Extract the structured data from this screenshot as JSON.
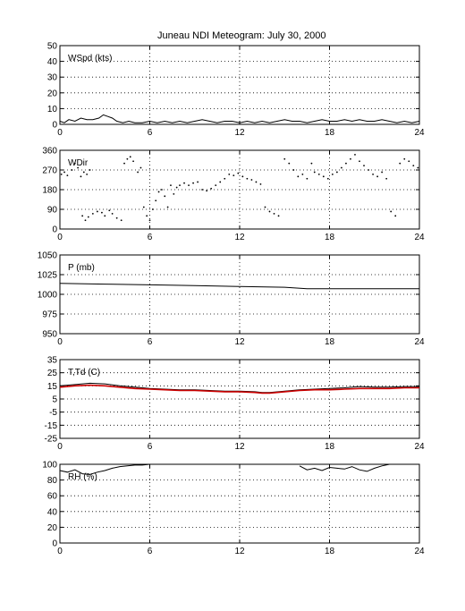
{
  "figure": {
    "title": "Juneau NDI Meteogram:",
    "date": "July 30, 2000"
  },
  "chart_data": [
    {
      "type": "line",
      "panel_label": "WSpd (kts)",
      "xlim": [
        0,
        24
      ],
      "xticks": [
        0,
        6,
        12,
        18,
        24
      ],
      "ylim": [
        0,
        50
      ],
      "yticks": [
        0,
        10,
        20,
        30,
        40,
        50
      ],
      "grid": true,
      "series": [
        {
          "color": "#000000",
          "points": [
            [
              0,
              2
            ],
            [
              0.3,
              1
            ],
            [
              0.6,
              3
            ],
            [
              1,
              2
            ],
            [
              1.4,
              4
            ],
            [
              1.8,
              3
            ],
            [
              2.2,
              3
            ],
            [
              2.6,
              4
            ],
            [
              2.9,
              6
            ],
            [
              3.2,
              5
            ],
            [
              3.5,
              4
            ],
            [
              3.8,
              2
            ],
            [
              4.2,
              1
            ],
            [
              4.6,
              2
            ],
            [
              5,
              1
            ],
            [
              5.5,
              1
            ],
            [
              6,
              2
            ],
            [
              6.5,
              1
            ],
            [
              7,
              2
            ],
            [
              7.5,
              1
            ],
            [
              8,
              2
            ],
            [
              8.5,
              1
            ],
            [
              9,
              2
            ],
            [
              9.5,
              3
            ],
            [
              10,
              2
            ],
            [
              10.5,
              1
            ],
            [
              11,
              2
            ],
            [
              11.5,
              2
            ],
            [
              12,
              1
            ],
            [
              12.5,
              2
            ],
            [
              13,
              1
            ],
            [
              13.5,
              2
            ],
            [
              14,
              1
            ],
            [
              14.5,
              2
            ],
            [
              15,
              3
            ],
            [
              15.5,
              2
            ],
            [
              16,
              2
            ],
            [
              16.5,
              1
            ],
            [
              17,
              2
            ],
            [
              17.5,
              3
            ],
            [
              18,
              2
            ],
            [
              18.5,
              2
            ],
            [
              19,
              3
            ],
            [
              19.5,
              2
            ],
            [
              20,
              3
            ],
            [
              20.5,
              2
            ],
            [
              21,
              2
            ],
            [
              21.5,
              3
            ],
            [
              22,
              2
            ],
            [
              22.5,
              1
            ],
            [
              23,
              2
            ],
            [
              23.5,
              1
            ],
            [
              24,
              2
            ]
          ]
        }
      ]
    },
    {
      "type": "scatter",
      "panel_label": "WDir",
      "xlim": [
        0,
        24
      ],
      "xticks": [
        0,
        6,
        12,
        18,
        24
      ],
      "ylim": [
        0,
        360
      ],
      "yticks": [
        0,
        90,
        180,
        270,
        360
      ],
      "grid": true,
      "series": [
        {
          "color": "#000000",
          "points": [
            [
              0.1,
              250
            ],
            [
              0.3,
              260
            ],
            [
              0.5,
              245
            ],
            [
              0.8,
              270
            ],
            [
              1.0,
              300
            ],
            [
              1.2,
              280
            ],
            [
              1.4,
              240
            ],
            [
              1.6,
              260
            ],
            [
              1.8,
              250
            ],
            [
              2.0,
              270
            ],
            [
              1.5,
              60
            ],
            [
              1.7,
              40
            ],
            [
              1.9,
              55
            ],
            [
              2.2,
              70
            ],
            [
              2.5,
              80
            ],
            [
              2.8,
              75
            ],
            [
              3.0,
              60
            ],
            [
              3.3,
              85
            ],
            [
              3.5,
              70
            ],
            [
              3.8,
              50
            ],
            [
              4.1,
              40
            ],
            [
              4.3,
              300
            ],
            [
              4.5,
              320
            ],
            [
              4.7,
              330
            ],
            [
              4.9,
              310
            ],
            [
              5.2,
              260
            ],
            [
              5.4,
              280
            ],
            [
              5.6,
              100
            ],
            [
              5.8,
              60
            ],
            [
              6.0,
              40
            ],
            [
              6.2,
              90
            ],
            [
              6.4,
              130
            ],
            [
              6.6,
              170
            ],
            [
              6.8,
              180
            ],
            [
              7.0,
              150
            ],
            [
              7.2,
              100
            ],
            [
              7.4,
              200
            ],
            [
              7.6,
              160
            ],
            [
              7.8,
              190
            ],
            [
              8.0,
              200
            ],
            [
              8.3,
              210
            ],
            [
              8.6,
              200
            ],
            [
              8.9,
              210
            ],
            [
              9.2,
              215
            ],
            [
              9.5,
              180
            ],
            [
              9.8,
              175
            ],
            [
              10.1,
              185
            ],
            [
              10.4,
              200
            ],
            [
              10.7,
              215
            ],
            [
              11.0,
              230
            ],
            [
              11.3,
              250
            ],
            [
              11.6,
              245
            ],
            [
              11.9,
              255
            ],
            [
              12.2,
              240
            ],
            [
              12.5,
              230
            ],
            [
              12.8,
              225
            ],
            [
              13.1,
              215
            ],
            [
              13.4,
              205
            ],
            [
              13.7,
              100
            ],
            [
              14.0,
              80
            ],
            [
              14.3,
              70
            ],
            [
              14.6,
              60
            ],
            [
              15.0,
              320
            ],
            [
              15.3,
              300
            ],
            [
              15.6,
              270
            ],
            [
              15.9,
              240
            ],
            [
              16.2,
              250
            ],
            [
              16.5,
              230
            ],
            [
              16.8,
              300
            ],
            [
              17.0,
              260
            ],
            [
              17.3,
              250
            ],
            [
              17.6,
              240
            ],
            [
              17.9,
              230
            ],
            [
              18.2,
              250
            ],
            [
              18.5,
              260
            ],
            [
              18.8,
              280
            ],
            [
              19.1,
              300
            ],
            [
              19.4,
              320
            ],
            [
              19.7,
              340
            ],
            [
              20.0,
              310
            ],
            [
              20.3,
              290
            ],
            [
              20.6,
              270
            ],
            [
              20.9,
              250
            ],
            [
              21.2,
              240
            ],
            [
              21.5,
              260
            ],
            [
              21.8,
              230
            ],
            [
              22.1,
              80
            ],
            [
              22.4,
              60
            ],
            [
              22.7,
              300
            ],
            [
              23.0,
              320
            ],
            [
              23.3,
              310
            ],
            [
              23.6,
              290
            ],
            [
              23.9,
              280
            ]
          ]
        }
      ]
    },
    {
      "type": "line",
      "panel_label": "P (mb)",
      "xlim": [
        0,
        24
      ],
      "xticks": [
        0,
        6,
        12,
        18,
        24
      ],
      "ylim": [
        950,
        1050
      ],
      "yticks": [
        950,
        975,
        1000,
        1025,
        1050
      ],
      "grid": true,
      "series": [
        {
          "color": "#000000",
          "points": [
            [
              0,
              1014
            ],
            [
              3,
              1013
            ],
            [
              6,
              1012
            ],
            [
              9,
              1011
            ],
            [
              12,
              1010
            ],
            [
              15,
              1009
            ],
            [
              16.5,
              1007
            ],
            [
              18,
              1007
            ],
            [
              21,
              1007
            ],
            [
              24,
              1007
            ]
          ]
        }
      ]
    },
    {
      "type": "line",
      "panel_label": "T,Td (C)",
      "xlim": [
        0,
        24
      ],
      "xticks": [
        0,
        6,
        12,
        18,
        24
      ],
      "ylim": [
        -25,
        35
      ],
      "yticks": [
        -25,
        -15,
        -5,
        5,
        15,
        25,
        35
      ],
      "grid": true,
      "series": [
        {
          "color": "#000000",
          "points": [
            [
              0,
              15
            ],
            [
              1,
              16
            ],
            [
              2,
              17
            ],
            [
              3,
              16.5
            ],
            [
              4,
              15
            ],
            [
              5,
              14
            ],
            [
              6,
              13
            ],
            [
              7,
              12.5
            ],
            [
              8,
              12
            ],
            [
              9,
              12
            ],
            [
              10,
              11.5
            ],
            [
              11,
              11
            ],
            [
              12,
              11
            ],
            [
              13,
              10.5
            ],
            [
              13.5,
              10
            ],
            [
              14,
              10
            ],
            [
              15,
              11
            ],
            [
              16,
              12
            ],
            [
              17,
              12.5
            ],
            [
              18,
              13
            ],
            [
              19,
              13.5
            ],
            [
              20,
              14.5
            ],
            [
              21,
              14
            ],
            [
              22,
              14
            ],
            [
              23,
              14.5
            ],
            [
              24,
              14.5
            ]
          ]
        },
        {
          "color": "#cc0000",
          "points": [
            [
              0,
              14
            ],
            [
              1,
              15
            ],
            [
              2,
              15.5
            ],
            [
              3,
              15
            ],
            [
              4,
              14
            ],
            [
              5,
              13
            ],
            [
              6,
              12.5
            ],
            [
              7,
              12
            ],
            [
              8,
              11.5
            ],
            [
              9,
              11.5
            ],
            [
              10,
              11
            ],
            [
              11,
              10.5
            ],
            [
              12,
              10.5
            ],
            [
              13,
              10
            ],
            [
              13.5,
              9.5
            ],
            [
              14,
              9.5
            ],
            [
              15,
              10.5
            ],
            [
              16,
              11.5
            ],
            [
              17,
              12
            ],
            [
              18,
              12
            ],
            [
              19,
              12.5
            ],
            [
              20,
              13
            ],
            [
              21,
              13
            ],
            [
              22,
              13
            ],
            [
              23,
              13.5
            ],
            [
              24,
              13.5
            ]
          ]
        }
      ]
    },
    {
      "type": "line",
      "panel_label": "RH (%)",
      "xlim": [
        0,
        24
      ],
      "xticks": [
        0,
        6,
        12,
        18,
        24
      ],
      "ylim": [
        0,
        100
      ],
      "yticks": [
        0,
        20,
        40,
        60,
        80,
        100
      ],
      "grid": true,
      "series": [
        {
          "color": "#000000",
          "points": [
            [
              0,
              92
            ],
            [
              0.5,
              90
            ],
            [
              1,
              93
            ],
            [
              1.5,
              88
            ],
            [
              2,
              87
            ],
            [
              2.5,
              90
            ],
            [
              3,
              92
            ],
            [
              3.5,
              95
            ],
            [
              4,
              97
            ],
            [
              4.5,
              98
            ],
            [
              5,
              99
            ],
            [
              5.5,
              99
            ],
            [
              6,
              100
            ],
            [
              6.5,
              100
            ],
            [
              7,
              null
            ],
            [
              16,
              98
            ],
            [
              16.5,
              93
            ],
            [
              17,
              95
            ],
            [
              17.5,
              92
            ],
            [
              18,
              96
            ],
            [
              18.5,
              95
            ],
            [
              19,
              94
            ],
            [
              19.5,
              97
            ],
            [
              20,
              93
            ],
            [
              20.5,
              91
            ],
            [
              21,
              95
            ],
            [
              21.5,
              98
            ],
            [
              22,
              100
            ],
            [
              23,
              100
            ],
            [
              23.5,
              100
            ],
            [
              24,
              100
            ]
          ]
        }
      ]
    }
  ]
}
